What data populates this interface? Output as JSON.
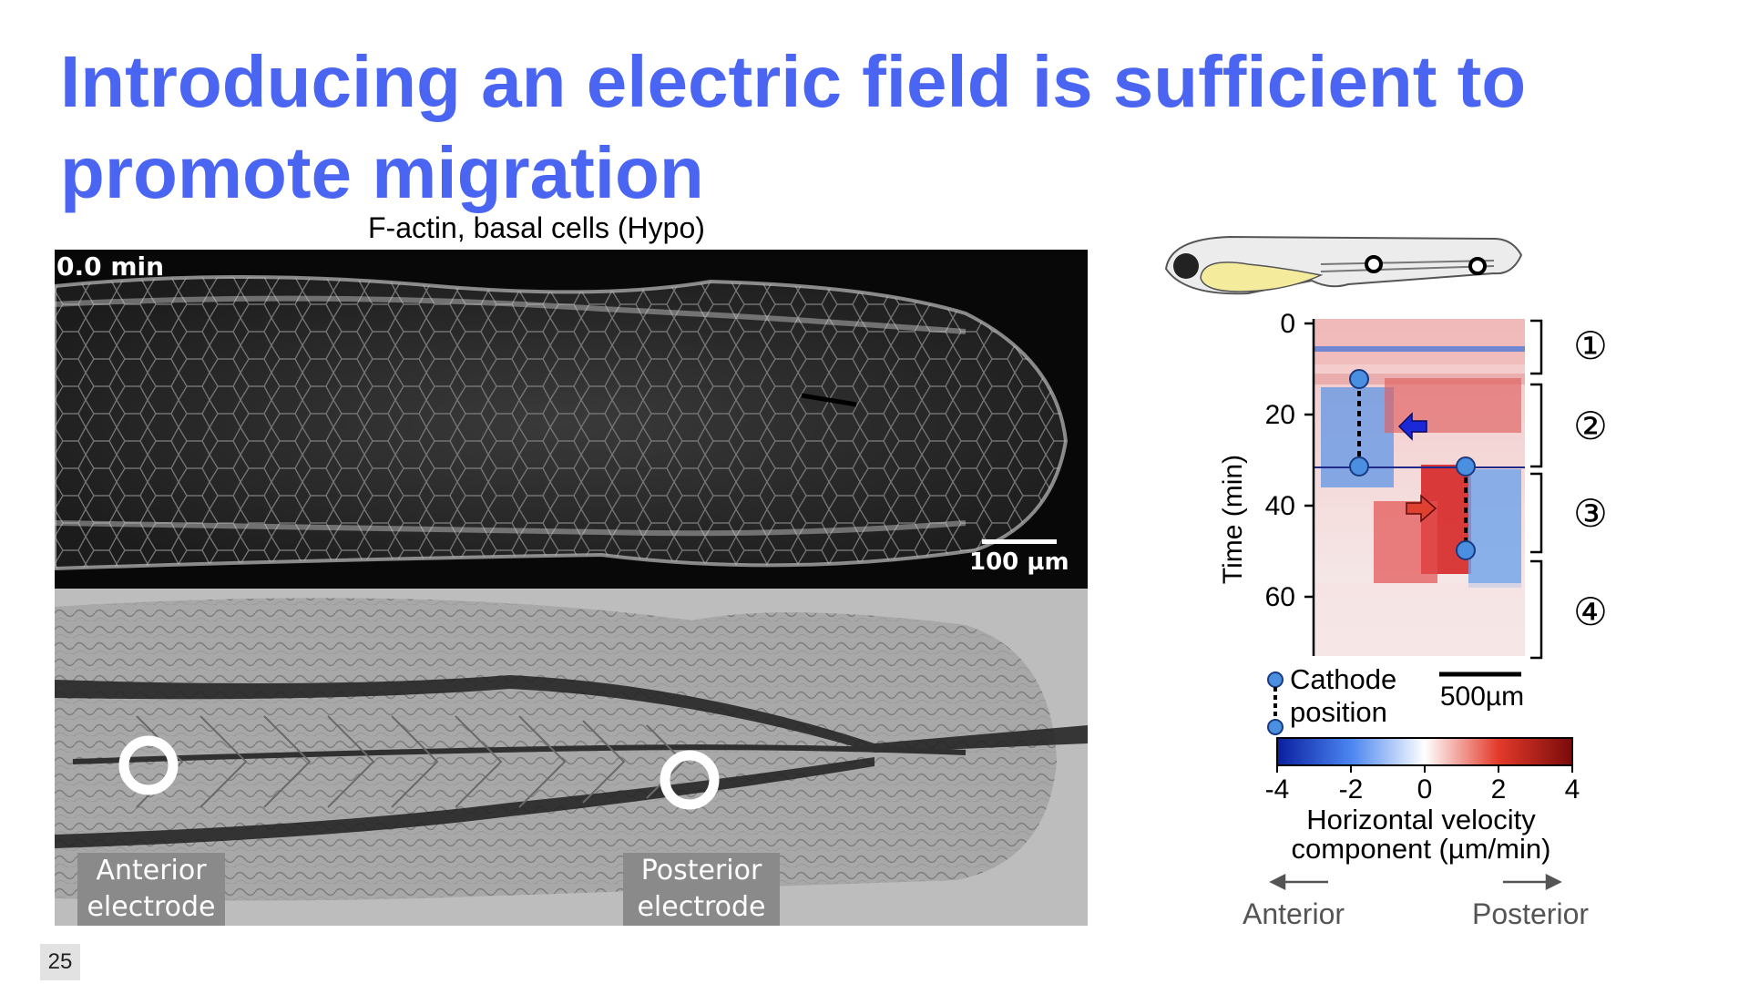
{
  "slide": {
    "title": "Introducing an electric field is sufficient to promote migration",
    "page_number": "25"
  },
  "left_panel": {
    "caption": "F-actin, basal cells (Hypo)",
    "time_label": "0.0 min",
    "scale_label": "100 µm",
    "anterior_electrode": [
      "Anterior",
      "electrode"
    ],
    "posterior_electrode": [
      "Posterior",
      "electrode"
    ]
  },
  "kymograph": {
    "y_axis_label": "Time (min)",
    "y_ticks": [
      "0",
      "20",
      "40",
      "60"
    ],
    "phases": [
      "①",
      "②",
      "③",
      "④"
    ],
    "scale_label": "500µm",
    "legend_label": [
      "Cathode",
      "position"
    ],
    "colorbar_ticks": [
      "-4",
      "-2",
      "0",
      "2",
      "4"
    ],
    "colorbar_label": [
      "Horizontal velocity",
      "component (µm/min)"
    ],
    "direction_left": "Anterior",
    "direction_right": "Posterior"
  },
  "colors": {
    "title": "#4a65f2",
    "negative": "#1f3fbf",
    "positive": "#c8101a",
    "cathode_marker": "#4a8fe0"
  }
}
